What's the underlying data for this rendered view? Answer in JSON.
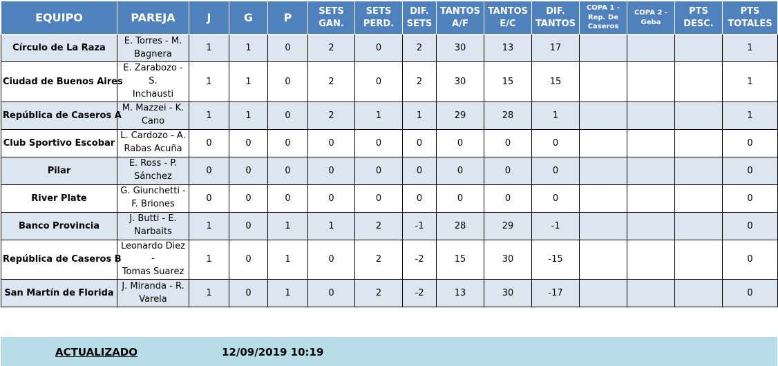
{
  "headers": {
    "equipo": "EQUIPO",
    "pareja": "PAREJA",
    "j": "J",
    "g": "G",
    "p": "P",
    "sets_gan_1": "SETS",
    "sets_gan_2": "GAN.",
    "sets_perd_1": "SETS",
    "sets_perd_2": "PERD.",
    "dif_sets_1": "DIF.",
    "dif_sets_2": "SETS",
    "tantos_af_1": "TANTOS",
    "tantos_af_2": "A/F",
    "tantos_ec_1": "TANTOS",
    "tantos_ec_2": "E/C",
    "dif_tantos_1": "DIF.",
    "dif_tantos_2": "TANTOS",
    "copa1_1": "COPA 1 -",
    "copa1_2": "Rep. De",
    "copa1_3": "Caseros",
    "copa2_1": "COPA 2 -",
    "copa2_2": "Geba",
    "pts_desc_1": "PTS",
    "pts_desc_2": "DESC.",
    "pts_totales_1": "PTS",
    "pts_totales_2": "TOTALES"
  },
  "rows": [
    {
      "equipo": "Círculo de La Raza",
      "pareja_1": "E. Torres - M.",
      "pareja_2": "Bagnera",
      "j": "1",
      "g": "1",
      "p": "0",
      "sets_gan": "2",
      "sets_perd": "0",
      "dif_sets": "2",
      "tantos_af": "30",
      "tantos_ec": "13",
      "dif_tantos": "17",
      "copa1": "",
      "copa2": "",
      "pts_desc": "",
      "pts_totales": "1"
    },
    {
      "equipo": "Ciudad de Buenos Aires",
      "pareja_1": "E. Zarabozo - S.",
      "pareja_2": "Inchausti",
      "j": "1",
      "g": "1",
      "p": "0",
      "sets_gan": "2",
      "sets_perd": "0",
      "dif_sets": "2",
      "tantos_af": "30",
      "tantos_ec": "15",
      "dif_tantos": "15",
      "copa1": "",
      "copa2": "",
      "pts_desc": "",
      "pts_totales": "1"
    },
    {
      "equipo": "República de Caseros A",
      "pareja_1": "M. Mazzei - K.",
      "pareja_2": "Cano",
      "j": "1",
      "g": "1",
      "p": "0",
      "sets_gan": "2",
      "sets_perd": "1",
      "dif_sets": "1",
      "tantos_af": "29",
      "tantos_ec": "28",
      "dif_tantos": "1",
      "copa1": "",
      "copa2": "",
      "pts_desc": "",
      "pts_totales": "1"
    },
    {
      "equipo": "Club Sportivo Escobar",
      "pareja_1": "L. Cardozo - A.",
      "pareja_2": "Rabas Acuña",
      "j": "0",
      "g": "0",
      "p": "0",
      "sets_gan": "0",
      "sets_perd": "0",
      "dif_sets": "0",
      "tantos_af": "0",
      "tantos_ec": "0",
      "dif_tantos": "0",
      "copa1": "",
      "copa2": "",
      "pts_desc": "",
      "pts_totales": "0"
    },
    {
      "equipo": "Pilar",
      "pareja_1": "E. Ross - P.",
      "pareja_2": "Sánchez",
      "j": "0",
      "g": "0",
      "p": "0",
      "sets_gan": "0",
      "sets_perd": "0",
      "dif_sets": "0",
      "tantos_af": "0",
      "tantos_ec": "0",
      "dif_tantos": "0",
      "copa1": "",
      "copa2": "",
      "pts_desc": "",
      "pts_totales": "0"
    },
    {
      "equipo": "River Plate",
      "pareja_1": "G. Giunchetti -",
      "pareja_2": "F. Briones",
      "j": "0",
      "g": "0",
      "p": "0",
      "sets_gan": "0",
      "sets_perd": "0",
      "dif_sets": "0",
      "tantos_af": "0",
      "tantos_ec": "0",
      "dif_tantos": "0",
      "copa1": "",
      "copa2": "",
      "pts_desc": "",
      "pts_totales": "0"
    },
    {
      "equipo": "Banco Provincia",
      "pareja_1": "J. Butti - E.",
      "pareja_2": "Narbaits",
      "j": "1",
      "g": "0",
      "p": "1",
      "sets_gan": "1",
      "sets_perd": "2",
      "dif_sets": "-1",
      "tantos_af": "28",
      "tantos_ec": "29",
      "dif_tantos": "-1",
      "copa1": "",
      "copa2": "",
      "pts_desc": "",
      "pts_totales": "0"
    },
    {
      "equipo": "República de Caseros B",
      "pareja_1": "Leonardo Diez -",
      "pareja_2": "Tomas Suarez",
      "j": "1",
      "g": "0",
      "p": "1",
      "sets_gan": "0",
      "sets_perd": "2",
      "dif_sets": "-2",
      "tantos_af": "15",
      "tantos_ec": "30",
      "dif_tantos": "-15",
      "copa1": "",
      "copa2": "",
      "pts_desc": "",
      "pts_totales": "0"
    },
    {
      "equipo": "San Martín de Florida",
      "pareja_1": "J. Miranda - R.",
      "pareja_2": "Varela",
      "j": "1",
      "g": "0",
      "p": "1",
      "sets_gan": "0",
      "sets_perd": "2",
      "dif_sets": "-2",
      "tantos_af": "13",
      "tantos_ec": "30",
      "dif_tantos": "-17",
      "copa1": "",
      "copa2": "",
      "pts_desc": "",
      "pts_totales": "0"
    }
  ],
  "footer": {
    "label": "ACTUALIZADO",
    "timestamp": "12/09/2019 10:19"
  },
  "colors": {
    "header_bg": "#4f81bd",
    "alt_row_bg": "#dce6f1",
    "footer_bg": "#b7dde8"
  }
}
